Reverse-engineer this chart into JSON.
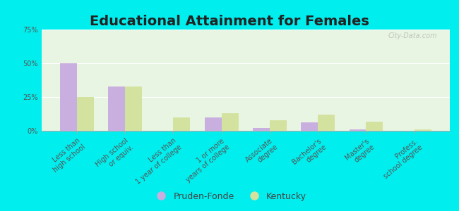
{
  "title": "Educational Attainment for Females",
  "categories": [
    "Less than\nhigh school",
    "High school\nor equiv.",
    "Less than\n1 year of college",
    "1 or more\nyears of college",
    "Associate\ndegree",
    "Bachelor's\ndegree",
    "Master's\ndegree",
    "Profess.\nschool degree"
  ],
  "pruden_fonde": [
    50,
    33,
    0,
    10,
    2,
    6,
    1,
    0
  ],
  "kentucky": [
    25,
    33,
    10,
    13,
    8,
    12,
    7,
    1
  ],
  "pruden_color": "#c9aee0",
  "kentucky_color": "#d4e2a0",
  "background_color": "#e8f5e2",
  "outer_background": "#00eeee",
  "bar_width": 0.35,
  "ylim": [
    0,
    75
  ],
  "yticks": [
    0,
    25,
    50,
    75
  ],
  "ytick_labels": [
    "0%",
    "25%",
    "50%",
    "75%"
  ],
  "title_fontsize": 14,
  "tick_fontsize": 7,
  "legend_fontsize": 9,
  "watermark": "City-Data.com"
}
